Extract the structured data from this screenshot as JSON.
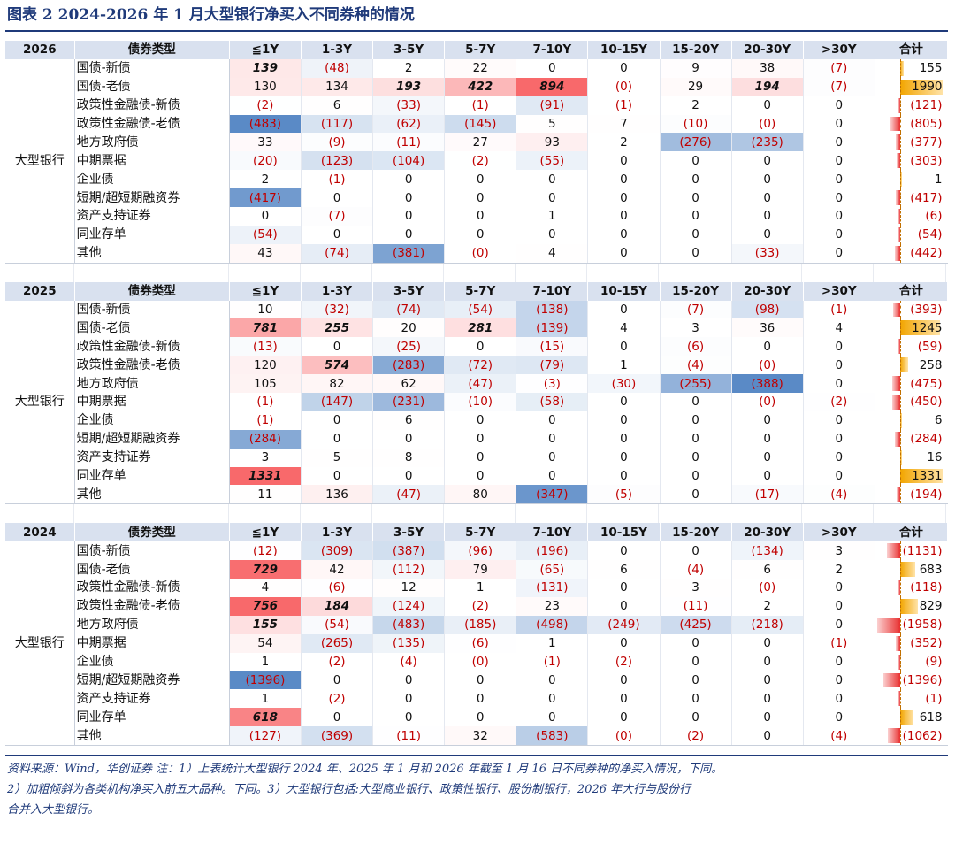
{
  "title": "图表 2   2024-2026 年 1 月大型银行净买入不同券种的情况",
  "header_type_label": "债券类型",
  "columns": [
    "≦1Y",
    "1-3Y",
    "3-5Y",
    "5-7Y",
    "7-10Y",
    "10-15Y",
    "15-20Y",
    "20-30Y",
    ">30Y",
    "合计"
  ],
  "bank_label": "大型银行",
  "colors": {
    "header_bg": "#d9e1ef",
    "negative_text": "#c00000",
    "high": "#f8696b",
    "low": "#5a8ac6",
    "pos_bar": "#f2a500",
    "neg_bar": "#e83030",
    "title": "#1f3a7a"
  },
  "sections": [
    {
      "year": "2026",
      "rows": [
        {
          "type": "国债-新债",
          "cells": [
            "139",
            "(48)",
            "2",
            "22",
            "0",
            "0",
            "9",
            "38",
            "(7)"
          ],
          "nums": [
            139,
            -48,
            2,
            22,
            0,
            0,
            9,
            38,
            -7
          ],
          "bold": [
            0
          ],
          "total": "155",
          "total_num": 155
        },
        {
          "type": "国债-老债",
          "cells": [
            "130",
            "134",
            "193",
            "422",
            "894",
            "(0)",
            "29",
            "194",
            "(7)"
          ],
          "nums": [
            130,
            134,
            193,
            422,
            894,
            0,
            29,
            194,
            -7
          ],
          "bold": [
            2,
            3,
            4,
            7
          ],
          "total": "1990",
          "total_num": 1990
        },
        {
          "type": "政策性金融债-新债",
          "cells": [
            "(2)",
            "6",
            "(33)",
            "(1)",
            "(91)",
            "(1)",
            "2",
            "0",
            "0"
          ],
          "nums": [
            -2,
            6,
            -33,
            -1,
            -91,
            -1,
            2,
            0,
            0
          ],
          "bold": [],
          "total": "(121)",
          "total_num": -121
        },
        {
          "type": "政策性金融债-老债",
          "cells": [
            "(483)",
            "(117)",
            "(62)",
            "(145)",
            "5",
            "7",
            "(10)",
            "(0)",
            "0"
          ],
          "nums": [
            -483,
            -117,
            -62,
            -145,
            5,
            7,
            -10,
            0,
            0
          ],
          "bold": [],
          "total": "(805)",
          "total_num": -805
        },
        {
          "type": "地方政府债",
          "cells": [
            "33",
            "(9)",
            "(11)",
            "27",
            "93",
            "2",
            "(276)",
            "(235)",
            "0"
          ],
          "nums": [
            33,
            -9,
            -11,
            27,
            93,
            2,
            -276,
            -235,
            0
          ],
          "bold": [],
          "total": "(377)",
          "total_num": -377
        },
        {
          "type": "中期票据",
          "cells": [
            "(20)",
            "(123)",
            "(104)",
            "(2)",
            "(55)",
            "0",
            "0",
            "0",
            "0"
          ],
          "nums": [
            -20,
            -123,
            -104,
            -2,
            -55,
            0,
            0,
            0,
            0
          ],
          "bold": [],
          "total": "(303)",
          "total_num": -303
        },
        {
          "type": "企业债",
          "cells": [
            "2",
            "(1)",
            "0",
            "0",
            "0",
            "0",
            "0",
            "0",
            "0"
          ],
          "nums": [
            2,
            -1,
            0,
            0,
            0,
            0,
            0,
            0,
            0
          ],
          "bold": [],
          "total": "1",
          "total_num": 1
        },
        {
          "type": "短期/超短期融资券",
          "cells": [
            "(417)",
            "0",
            "0",
            "0",
            "0",
            "0",
            "0",
            "0",
            "0"
          ],
          "nums": [
            -417,
            0,
            0,
            0,
            0,
            0,
            0,
            0,
            0
          ],
          "bold": [],
          "total": "(417)",
          "total_num": -417
        },
        {
          "type": "资产支持证券",
          "cells": [
            "0",
            "(7)",
            "0",
            "0",
            "1",
            "0",
            "0",
            "0",
            "0"
          ],
          "nums": [
            0,
            -7,
            0,
            0,
            1,
            0,
            0,
            0,
            0
          ],
          "bold": [],
          "total": "(6)",
          "total_num": -6
        },
        {
          "type": "同业存单",
          "cells": [
            "(54)",
            "0",
            "0",
            "0",
            "0",
            "0",
            "0",
            "0",
            "0"
          ],
          "nums": [
            -54,
            0,
            0,
            0,
            0,
            0,
            0,
            0,
            0
          ],
          "bold": [],
          "total": "(54)",
          "total_num": -54
        },
        {
          "type": "其他",
          "cells": [
            "43",
            "(74)",
            "(381)",
            "(0)",
            "4",
            "0",
            "0",
            "(33)",
            "0"
          ],
          "nums": [
            43,
            -74,
            -381,
            0,
            4,
            0,
            0,
            -33,
            0
          ],
          "bold": [],
          "total": "(442)",
          "total_num": -442
        }
      ]
    },
    {
      "year": "2025",
      "rows": [
        {
          "type": "国债-新债",
          "cells": [
            "10",
            "(32)",
            "(74)",
            "(54)",
            "(138)",
            "0",
            "(7)",
            "(98)",
            "(1)"
          ],
          "nums": [
            10,
            -32,
            -74,
            -54,
            -138,
            0,
            -7,
            -98,
            -1
          ],
          "bold": [],
          "total": "(393)",
          "total_num": -393
        },
        {
          "type": "国债-老债",
          "cells": [
            "781",
            "255",
            "20",
            "281",
            "(139)",
            "4",
            "3",
            "36",
            "4"
          ],
          "nums": [
            781,
            255,
            20,
            281,
            -139,
            4,
            3,
            36,
            4
          ],
          "bold": [
            0,
            1,
            3
          ],
          "total": "1245",
          "total_num": 1245
        },
        {
          "type": "政策性金融债-新债",
          "cells": [
            "(13)",
            "0",
            "(25)",
            "0",
            "(15)",
            "0",
            "(6)",
            "0",
            "0"
          ],
          "nums": [
            -13,
            0,
            -25,
            0,
            -15,
            0,
            -6,
            0,
            0
          ],
          "bold": [],
          "total": "(59)",
          "total_num": -59
        },
        {
          "type": "政策性金融债-老债",
          "cells": [
            "120",
            "574",
            "(283)",
            "(72)",
            "(79)",
            "1",
            "(4)",
            "(0)",
            "0"
          ],
          "nums": [
            120,
            574,
            -283,
            -72,
            -79,
            1,
            -4,
            0,
            0
          ],
          "bold": [
            1
          ],
          "total": "258",
          "total_num": 258
        },
        {
          "type": "地方政府债",
          "cells": [
            "105",
            "82",
            "62",
            "(47)",
            "(3)",
            "(30)",
            "(255)",
            "(388)",
            "0"
          ],
          "nums": [
            105,
            82,
            62,
            -47,
            -3,
            -30,
            -255,
            -388,
            0
          ],
          "bold": [],
          "total": "(475)",
          "total_num": -475
        },
        {
          "type": "中期票据",
          "cells": [
            "(1)",
            "(147)",
            "(231)",
            "(10)",
            "(58)",
            "0",
            "0",
            "(0)",
            "(2)"
          ],
          "nums": [
            -1,
            -147,
            -231,
            -10,
            -58,
            0,
            0,
            0,
            -2
          ],
          "bold": [],
          "total": "(450)",
          "total_num": -450
        },
        {
          "type": "企业债",
          "cells": [
            "(1)",
            "0",
            "6",
            "0",
            "0",
            "0",
            "0",
            "0",
            "0"
          ],
          "nums": [
            -1,
            0,
            6,
            0,
            0,
            0,
            0,
            0,
            0
          ],
          "bold": [],
          "total": "6",
          "total_num": 6
        },
        {
          "type": "短期/超短期融资券",
          "cells": [
            "(284)",
            "0",
            "0",
            "0",
            "0",
            "0",
            "0",
            "0",
            "0"
          ],
          "nums": [
            -284,
            0,
            0,
            0,
            0,
            0,
            0,
            0,
            0
          ],
          "bold": [],
          "total": "(284)",
          "total_num": -284
        },
        {
          "type": "资产支持证券",
          "cells": [
            "3",
            "5",
            "8",
            "0",
            "0",
            "0",
            "0",
            "0",
            "0"
          ],
          "nums": [
            3,
            5,
            8,
            0,
            0,
            0,
            0,
            0,
            0
          ],
          "bold": [],
          "total": "16",
          "total_num": 16
        },
        {
          "type": "同业存单",
          "cells": [
            "1331",
            "0",
            "0",
            "0",
            "0",
            "0",
            "0",
            "0",
            "0"
          ],
          "nums": [
            1331,
            0,
            0,
            0,
            0,
            0,
            0,
            0,
            0
          ],
          "bold": [
            0
          ],
          "total": "1331",
          "total_num": 1331
        },
        {
          "type": "其他",
          "cells": [
            "11",
            "136",
            "(47)",
            "80",
            "(347)",
            "(5)",
            "0",
            "(17)",
            "(4)"
          ],
          "nums": [
            11,
            136,
            -47,
            80,
            -347,
            -5,
            0,
            -17,
            -4
          ],
          "bold": [],
          "total": "(194)",
          "total_num": -194
        }
      ]
    },
    {
      "year": "2024",
      "rows": [
        {
          "type": "国债-新债",
          "cells": [
            "(12)",
            "(309)",
            "(387)",
            "(96)",
            "(196)",
            "0",
            "0",
            "(134)",
            "3"
          ],
          "nums": [
            -12,
            -309,
            -387,
            -96,
            -196,
            0,
            0,
            -134,
            3
          ],
          "bold": [],
          "total": "(1131)",
          "total_num": -1131
        },
        {
          "type": "国债-老债",
          "cells": [
            "729",
            "42",
            "(112)",
            "79",
            "(65)",
            "6",
            "(4)",
            "6",
            "2"
          ],
          "nums": [
            729,
            42,
            -112,
            79,
            -65,
            6,
            -4,
            6,
            2
          ],
          "bold": [
            0
          ],
          "total": "683",
          "total_num": 683
        },
        {
          "type": "政策性金融债-新债",
          "cells": [
            "4",
            "(6)",
            "12",
            "1",
            "(131)",
            "0",
            "3",
            "(0)",
            "0"
          ],
          "nums": [
            4,
            -6,
            12,
            1,
            -131,
            0,
            3,
            0,
            0
          ],
          "bold": [],
          "total": "(118)",
          "total_num": -118
        },
        {
          "type": "政策性金融债-老债",
          "cells": [
            "756",
            "184",
            "(124)",
            "(2)",
            "23",
            "0",
            "(11)",
            "2",
            "0"
          ],
          "nums": [
            756,
            184,
            -124,
            -2,
            23,
            0,
            -11,
            2,
            0
          ],
          "bold": [
            0,
            1
          ],
          "total": "829",
          "total_num": 829
        },
        {
          "type": "地方政府债",
          "cells": [
            "155",
            "(54)",
            "(483)",
            "(185)",
            "(498)",
            "(249)",
            "(425)",
            "(218)",
            "0"
          ],
          "nums": [
            155,
            -54,
            -483,
            -185,
            -498,
            -249,
            -425,
            -218,
            0
          ],
          "bold": [
            0
          ],
          "total": "(1958)",
          "total_num": -1958
        },
        {
          "type": "中期票据",
          "cells": [
            "54",
            "(265)",
            "(135)",
            "(6)",
            "1",
            "0",
            "0",
            "0",
            "(1)"
          ],
          "nums": [
            54,
            -265,
            -135,
            -6,
            1,
            0,
            0,
            0,
            -1
          ],
          "bold": [],
          "total": "(352)",
          "total_num": -352
        },
        {
          "type": "企业债",
          "cells": [
            "1",
            "(2)",
            "(4)",
            "(0)",
            "(1)",
            "(2)",
            "0",
            "0",
            "0"
          ],
          "nums": [
            1,
            -2,
            -4,
            0,
            -1,
            -2,
            0,
            0,
            0
          ],
          "bold": [],
          "total": "(9)",
          "total_num": -9
        },
        {
          "type": "短期/超短期融资券",
          "cells": [
            "(1396)",
            "0",
            "0",
            "0",
            "0",
            "0",
            "0",
            "0",
            "0"
          ],
          "nums": [
            -1396,
            0,
            0,
            0,
            0,
            0,
            0,
            0,
            0
          ],
          "bold": [],
          "total": "(1396)",
          "total_num": -1396
        },
        {
          "type": "资产支持证券",
          "cells": [
            "1",
            "(2)",
            "0",
            "0",
            "0",
            "0",
            "0",
            "0",
            "0"
          ],
          "nums": [
            1,
            -2,
            0,
            0,
            0,
            0,
            0,
            0,
            0
          ],
          "bold": [],
          "total": "(1)",
          "total_num": -1
        },
        {
          "type": "同业存单",
          "cells": [
            "618",
            "0",
            "0",
            "0",
            "0",
            "0",
            "0",
            "0",
            "0"
          ],
          "nums": [
            618,
            0,
            0,
            0,
            0,
            0,
            0,
            0,
            0
          ],
          "bold": [
            0
          ],
          "total": "618",
          "total_num": 618
        },
        {
          "type": "其他",
          "cells": [
            "(127)",
            "(369)",
            "(11)",
            "32",
            "(583)",
            "(0)",
            "(2)",
            "0",
            "(4)"
          ],
          "nums": [
            -127,
            -369,
            -11,
            32,
            -583,
            0,
            -2,
            0,
            -4
          ],
          "bold": [],
          "total": "(1062)",
          "total_num": -1062
        }
      ]
    }
  ],
  "footnote": {
    "line1": "资料来源：Wind，华创证券 注：1）上表统计大型银行 2024 年、2025 年 1 月和 2026 年截至 1 月 16 日不同券种的净买入情况，下同。",
    "line2": "2）加粗倾斜为各类机构净买入前五大品种。下同。3）大型银行包括:大型商业银行、政策性银行、股份制银行，2026 年大行与股份行",
    "line3": "合并入大型银行。"
  }
}
